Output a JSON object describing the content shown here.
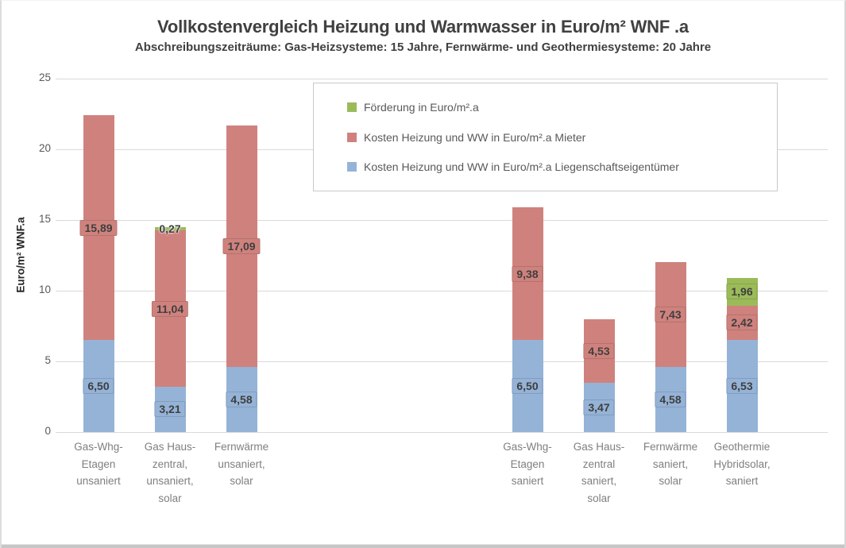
{
  "chart_data": {
    "type": "bar",
    "stacked": true,
    "title": "Vollkostenvergleich Heizung und Warmwasser in Euro/m² WNF .a",
    "subtitle": "Abschreibungszeiträume: Gas-Heizsysteme: 15 Jahre, Fernwärme- und Geothermiesysteme: 20 Jahre",
    "ylabel": "Euro/m² WNF.a",
    "xlabel": "",
    "ylim": [
      0,
      25
    ],
    "yticks": [
      0,
      5,
      10,
      15,
      20,
      25
    ],
    "grid": true,
    "grid_color": "#D9D9D9",
    "legend_position": "top-center-inside",
    "value_label_format": "german-comma-2-decimals",
    "categories": [
      "Gas-Whg-\nEtagen\nunsaniert",
      "Gas Haus-\nzentral,\nunsaniert,\nsolar",
      "Fernwärme\nunsaniert,\nsolar",
      "",
      "",
      "",
      "Gas-Whg-\nEtagen\nsaniert",
      "Gas Haus-\nzentral\nsaniert,\nsolar",
      "Fernwärme\nsaniert,\nsolar",
      "Geothermie\nHybridsolar,\nsaniert"
    ],
    "series": [
      {
        "name": "Förderung in Euro/m².a",
        "color": "#9BBB59",
        "values": [
          null,
          0.27,
          null,
          null,
          null,
          null,
          null,
          null,
          null,
          1.96
        ]
      },
      {
        "name": "Kosten Heizung und WW in Euro/m².a Mieter",
        "color": "#CF827D",
        "values": [
          15.89,
          11.04,
          17.09,
          null,
          null,
          null,
          9.38,
          4.53,
          7.43,
          2.42
        ]
      },
      {
        "name": "Kosten Heizung und WW in Euro/m².a Liegenschaftseigentümer",
        "color": "#95B3D7",
        "values": [
          6.5,
          3.21,
          4.58,
          null,
          null,
          null,
          6.5,
          3.47,
          4.58,
          6.53
        ]
      }
    ]
  }
}
